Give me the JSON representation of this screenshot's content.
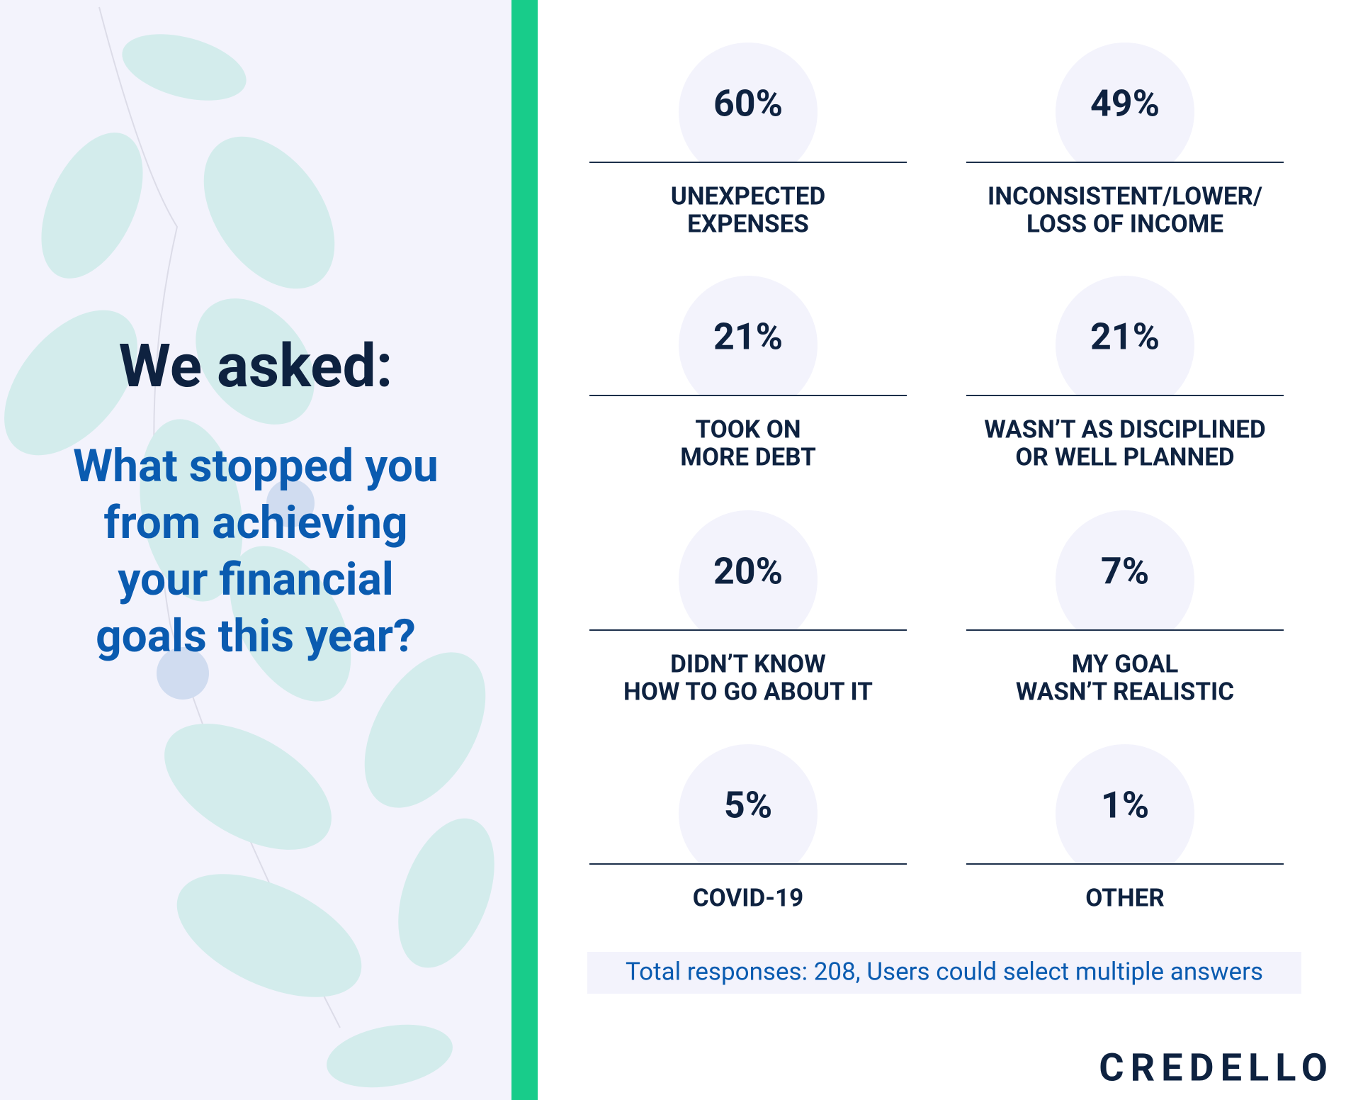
{
  "intro": {
    "heading": "We asked:",
    "question": [
      "What stopped you",
      "from achieving",
      "your financial",
      "goals this year?"
    ]
  },
  "stats": [
    {
      "value": "60%",
      "label": [
        "UNEXPECTED",
        "EXPENSES"
      ]
    },
    {
      "value": "49%",
      "label": [
        "INCONSISTENT/LOWER/",
        "LOSS OF INCOME"
      ]
    },
    {
      "value": "21%",
      "label": [
        "TOOK ON",
        "MORE DEBT"
      ]
    },
    {
      "value": "21%",
      "label": [
        "WASN’T AS DISCIPLINED",
        "OR WELL PLANNED"
      ]
    },
    {
      "value": "20%",
      "label": [
        "DIDN’T KNOW",
        "HOW TO GO ABOUT IT"
      ]
    },
    {
      "value": "7%",
      "label": [
        "MY GOAL",
        "WASN’T REALISTIC"
      ]
    },
    {
      "value": "5%",
      "label": [
        "COVID-19"
      ]
    },
    {
      "value": "1%",
      "label": [
        "OTHER"
      ]
    }
  ],
  "footnote": "Total responses: 208, Users could select multiple answers",
  "logo": "CREDELLO"
}
